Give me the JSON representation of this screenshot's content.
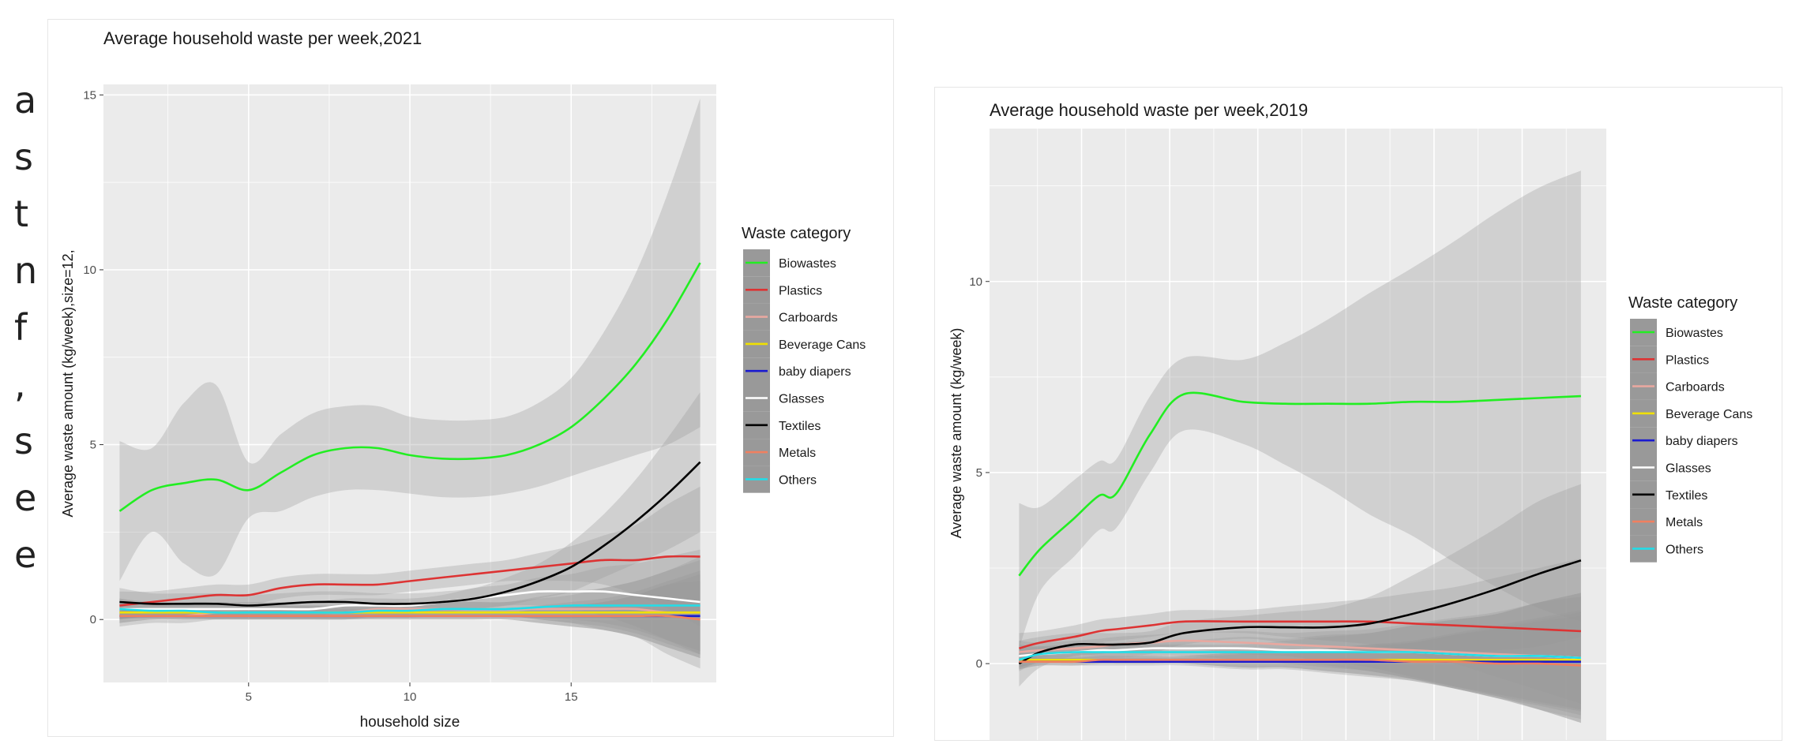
{
  "slide_text_fragments": [
    "a",
    "s",
    "t",
    "n",
    "f",
    ",",
    "s",
    "e",
    "e"
  ],
  "chart_data": [
    {
      "type": "line",
      "title": "Average household waste per week,2021",
      "xlabel": "household size",
      "ylabel": "Average waste amount (kg/week),size=12,",
      "xlim": [
        0.5,
        19.5
      ],
      "ylim": [
        -1.8,
        15.3
      ],
      "xticks": [
        "5",
        "10",
        "15"
      ],
      "xtick_values": [
        5,
        10,
        15
      ],
      "yticks": [
        "0",
        "5",
        "10",
        "15"
      ],
      "ytick_values": [
        0,
        5,
        10,
        15
      ],
      "grid": true,
      "legend": {
        "title": "Waste category",
        "position": "right"
      },
      "x": [
        1,
        2,
        3,
        4,
        5,
        6,
        7,
        8,
        9,
        10,
        11,
        12,
        13,
        14,
        15,
        16,
        17,
        18,
        19
      ],
      "series": [
        {
          "name": "Biowastes",
          "color": "#22ee22",
          "values": [
            3.1,
            3.7,
            3.9,
            4.0,
            3.7,
            4.2,
            4.7,
            4.9,
            4.9,
            4.7,
            4.6,
            4.6,
            4.7,
            5.0,
            5.5,
            6.3,
            7.3,
            8.6,
            10.2
          ],
          "band": [
            2.0,
            1.2,
            2.3,
            2.7,
            0.8,
            1.1,
            1.2,
            1.2,
            1.2,
            1.1,
            1.1,
            1.1,
            1.1,
            1.2,
            1.4,
            1.9,
            2.6,
            3.6,
            4.7
          ]
        },
        {
          "name": "Plastics",
          "color": "#dd3333",
          "values": [
            0.4,
            0.5,
            0.6,
            0.7,
            0.7,
            0.9,
            1.0,
            1.0,
            1.0,
            1.1,
            1.2,
            1.3,
            1.4,
            1.5,
            1.6,
            1.7,
            1.7,
            1.8,
            1.8
          ],
          "band": [
            0.4,
            0.3,
            0.3,
            0.3,
            0.3,
            0.3,
            0.3,
            0.3,
            0.3,
            0.3,
            0.3,
            0.3,
            0.3,
            0.4,
            0.5,
            0.7,
            1.0,
            1.5,
            2.0
          ]
        },
        {
          "name": "Carboards",
          "color": "#e8a8a0",
          "values": [
            0.1,
            0.1,
            0.1,
            0.2,
            0.2,
            0.2,
            0.2,
            0.2,
            0.3,
            0.3,
            0.3,
            0.3,
            0.3,
            0.3,
            0.3,
            0.3,
            0.3,
            0.2,
            0.2
          ],
          "band": [
            0.3,
            0.2,
            0.2,
            0.2,
            0.2,
            0.2,
            0.2,
            0.2,
            0.2,
            0.2,
            0.2,
            0.2,
            0.2,
            0.3,
            0.4,
            0.6,
            0.8,
            1.2,
            1.6
          ]
        },
        {
          "name": "Beverage Cans",
          "color": "#f0e000",
          "values": [
            0.2,
            0.2,
            0.2,
            0.2,
            0.2,
            0.2,
            0.2,
            0.2,
            0.2,
            0.2,
            0.2,
            0.2,
            0.2,
            0.2,
            0.2,
            0.2,
            0.2,
            0.2,
            0.2
          ],
          "band": [
            0.2,
            0.1,
            0.1,
            0.1,
            0.1,
            0.1,
            0.1,
            0.1,
            0.1,
            0.1,
            0.1,
            0.1,
            0.1,
            0.2,
            0.3,
            0.4,
            0.6,
            0.9,
            1.2
          ]
        },
        {
          "name": "baby diapers",
          "color": "#1a1ad0",
          "values": [
            0.1,
            0.1,
            0.1,
            0.1,
            0.1,
            0.1,
            0.1,
            0.1,
            0.1,
            0.1,
            0.1,
            0.1,
            0.1,
            0.1,
            0.1,
            0.1,
            0.1,
            0.1,
            0.1
          ],
          "band": [
            0.2,
            0.1,
            0.1,
            0.1,
            0.1,
            0.1,
            0.1,
            0.1,
            0.1,
            0.1,
            0.1,
            0.1,
            0.1,
            0.2,
            0.3,
            0.4,
            0.6,
            0.9,
            1.2
          ]
        },
        {
          "name": "Glasses",
          "color": "#ffffff",
          "values": [
            0.3,
            0.3,
            0.3,
            0.3,
            0.3,
            0.3,
            0.3,
            0.4,
            0.4,
            0.4,
            0.5,
            0.6,
            0.7,
            0.8,
            0.8,
            0.8,
            0.7,
            0.6,
            0.5
          ],
          "band": [
            0.3,
            0.2,
            0.2,
            0.2,
            0.2,
            0.2,
            0.2,
            0.2,
            0.2,
            0.2,
            0.2,
            0.3,
            0.3,
            0.4,
            0.5,
            0.7,
            0.9,
            1.2,
            1.5
          ]
        },
        {
          "name": "Textiles",
          "color": "#000000",
          "values": [
            0.5,
            0.45,
            0.45,
            0.45,
            0.4,
            0.45,
            0.5,
            0.5,
            0.45,
            0.45,
            0.5,
            0.6,
            0.8,
            1.1,
            1.5,
            2.1,
            2.8,
            3.6,
            4.5
          ],
          "band": [
            0.4,
            0.3,
            0.3,
            0.3,
            0.3,
            0.3,
            0.3,
            0.3,
            0.3,
            0.3,
            0.3,
            0.3,
            0.4,
            0.5,
            0.7,
            0.9,
            1.2,
            1.6,
            2.0
          ]
        },
        {
          "name": "Metals",
          "color": "#f08060",
          "values": [
            0.1,
            0.1,
            0.1,
            0.1,
            0.1,
            0.1,
            0.1,
            0.1,
            0.1,
            0.1,
            0.1,
            0.1,
            0.1,
            0.1,
            0.1,
            0.1,
            0.1,
            0.1,
            0.0
          ],
          "band": [
            0.2,
            0.1,
            0.1,
            0.1,
            0.1,
            0.1,
            0.1,
            0.1,
            0.1,
            0.1,
            0.1,
            0.1,
            0.1,
            0.2,
            0.3,
            0.4,
            0.6,
            0.9,
            1.1
          ]
        },
        {
          "name": "Others",
          "color": "#22dde8",
          "values": [
            0.3,
            0.25,
            0.25,
            0.2,
            0.2,
            0.2,
            0.2,
            0.2,
            0.25,
            0.25,
            0.3,
            0.3,
            0.3,
            0.35,
            0.4,
            0.4,
            0.4,
            0.4,
            0.4
          ],
          "band": [
            0.3,
            0.2,
            0.2,
            0.2,
            0.2,
            0.2,
            0.2,
            0.2,
            0.2,
            0.2,
            0.2,
            0.2,
            0.2,
            0.3,
            0.4,
            0.5,
            0.7,
            1.0,
            1.3
          ]
        }
      ]
    },
    {
      "type": "line",
      "title": "Average household waste per week,2019",
      "xlabel": "",
      "ylabel": "Average waste amount (kg/week)",
      "xlim": [
        0.5,
        7.8
      ],
      "ylim": [
        -2.0,
        14.0
      ],
      "xticks": [],
      "yticks": [
        "0",
        "5",
        "10"
      ],
      "ytick_values": [
        0,
        5,
        10
      ],
      "grid": true,
      "legend": {
        "title": "Waste category",
        "position": "right"
      },
      "x": [
        0.85,
        1.1,
        1.5,
        1.8,
        2.0,
        2.4,
        2.8,
        3.5,
        4.0,
        4.5,
        5.0,
        5.5,
        6.0,
        6.5,
        7.0,
        7.5
      ],
      "series": [
        {
          "name": "Biowastes",
          "color": "#22ee22",
          "values": [
            2.3,
            3.0,
            3.8,
            4.4,
            4.45,
            6.0,
            7.05,
            6.85,
            6.8,
            6.8,
            6.8,
            6.85,
            6.85,
            6.9,
            6.95,
            7.0
          ],
          "band": [
            1.9,
            1.1,
            1.0,
            0.9,
            0.9,
            1.0,
            0.95,
            1.1,
            1.6,
            2.2,
            2.9,
            3.5,
            4.2,
            4.9,
            5.5,
            5.9
          ]
        },
        {
          "name": "Plastics",
          "color": "#dd3333",
          "values": [
            0.4,
            0.55,
            0.7,
            0.85,
            0.9,
            1.0,
            1.1,
            1.1,
            1.1,
            1.1,
            1.1,
            1.05,
            1.0,
            0.95,
            0.9,
            0.85
          ],
          "band": [
            0.4,
            0.3,
            0.3,
            0.3,
            0.3,
            0.3,
            0.3,
            0.3,
            0.4,
            0.5,
            0.6,
            0.8,
            1.0,
            1.3,
            1.6,
            1.9
          ]
        },
        {
          "name": "Carboards",
          "color": "#e8a8a0",
          "values": [
            0.3,
            0.35,
            0.4,
            0.45,
            0.5,
            0.55,
            0.6,
            0.55,
            0.5,
            0.45,
            0.4,
            0.35,
            0.3,
            0.25,
            0.2,
            0.15
          ],
          "band": [
            0.3,
            0.2,
            0.2,
            0.2,
            0.2,
            0.2,
            0.2,
            0.3,
            0.3,
            0.4,
            0.5,
            0.7,
            0.9,
            1.1,
            1.4,
            1.7
          ]
        },
        {
          "name": "Beverage Cans",
          "color": "#f0e000",
          "values": [
            0.1,
            0.1,
            0.1,
            0.1,
            0.1,
            0.1,
            0.1,
            0.1,
            0.1,
            0.1,
            0.1,
            0.1,
            0.1,
            0.1,
            0.1,
            0.1
          ],
          "band": [
            0.2,
            0.1,
            0.1,
            0.1,
            0.1,
            0.1,
            0.1,
            0.2,
            0.2,
            0.3,
            0.4,
            0.5,
            0.7,
            0.9,
            1.1,
            1.3
          ]
        },
        {
          "name": "baby diapers",
          "color": "#1a1ad0",
          "values": [
            0.05,
            0.05,
            0.05,
            0.05,
            0.05,
            0.05,
            0.05,
            0.05,
            0.05,
            0.05,
            0.05,
            0.05,
            0.05,
            0.05,
            0.05,
            0.05
          ],
          "band": [
            0.2,
            0.1,
            0.1,
            0.1,
            0.1,
            0.1,
            0.1,
            0.2,
            0.2,
            0.3,
            0.4,
            0.5,
            0.7,
            0.9,
            1.1,
            1.3
          ]
        },
        {
          "name": "Glasses",
          "color": "#ffffff",
          "values": [
            0.2,
            0.25,
            0.3,
            0.35,
            0.35,
            0.4,
            0.4,
            0.4,
            0.35,
            0.35,
            0.3,
            0.3,
            0.25,
            0.2,
            0.2,
            0.15
          ],
          "band": [
            0.3,
            0.2,
            0.2,
            0.2,
            0.2,
            0.2,
            0.2,
            0.3,
            0.3,
            0.4,
            0.5,
            0.7,
            0.9,
            1.1,
            1.4,
            1.6
          ]
        },
        {
          "name": "Textiles",
          "color": "#000000",
          "values": [
            0.0,
            0.3,
            0.5,
            0.5,
            0.5,
            0.55,
            0.8,
            0.95,
            0.95,
            0.95,
            1.05,
            1.3,
            1.6,
            1.95,
            2.35,
            2.7
          ],
          "band": [
            0.6,
            0.4,
            0.3,
            0.3,
            0.3,
            0.3,
            0.3,
            0.3,
            0.4,
            0.5,
            0.7,
            1.0,
            1.3,
            1.6,
            1.9,
            2.0
          ]
        },
        {
          "name": "Metals",
          "color": "#f08060",
          "values": [
            0.05,
            0.05,
            0.05,
            0.1,
            0.1,
            0.1,
            0.1,
            0.1,
            0.1,
            0.1,
            0.1,
            0.05,
            0.05,
            0.0,
            0.0,
            -0.05
          ],
          "band": [
            0.2,
            0.1,
            0.1,
            0.1,
            0.1,
            0.1,
            0.1,
            0.2,
            0.2,
            0.3,
            0.4,
            0.5,
            0.7,
            0.9,
            1.1,
            1.3
          ]
        },
        {
          "name": "Others",
          "color": "#22dde8",
          "values": [
            0.1,
            0.25,
            0.3,
            0.3,
            0.3,
            0.3,
            0.3,
            0.3,
            0.3,
            0.3,
            0.3,
            0.3,
            0.25,
            0.2,
            0.2,
            0.15
          ],
          "band": [
            0.3,
            0.2,
            0.2,
            0.2,
            0.2,
            0.2,
            0.2,
            0.2,
            0.3,
            0.4,
            0.5,
            0.7,
            0.9,
            1.1,
            1.4,
            1.7
          ]
        }
      ]
    }
  ]
}
